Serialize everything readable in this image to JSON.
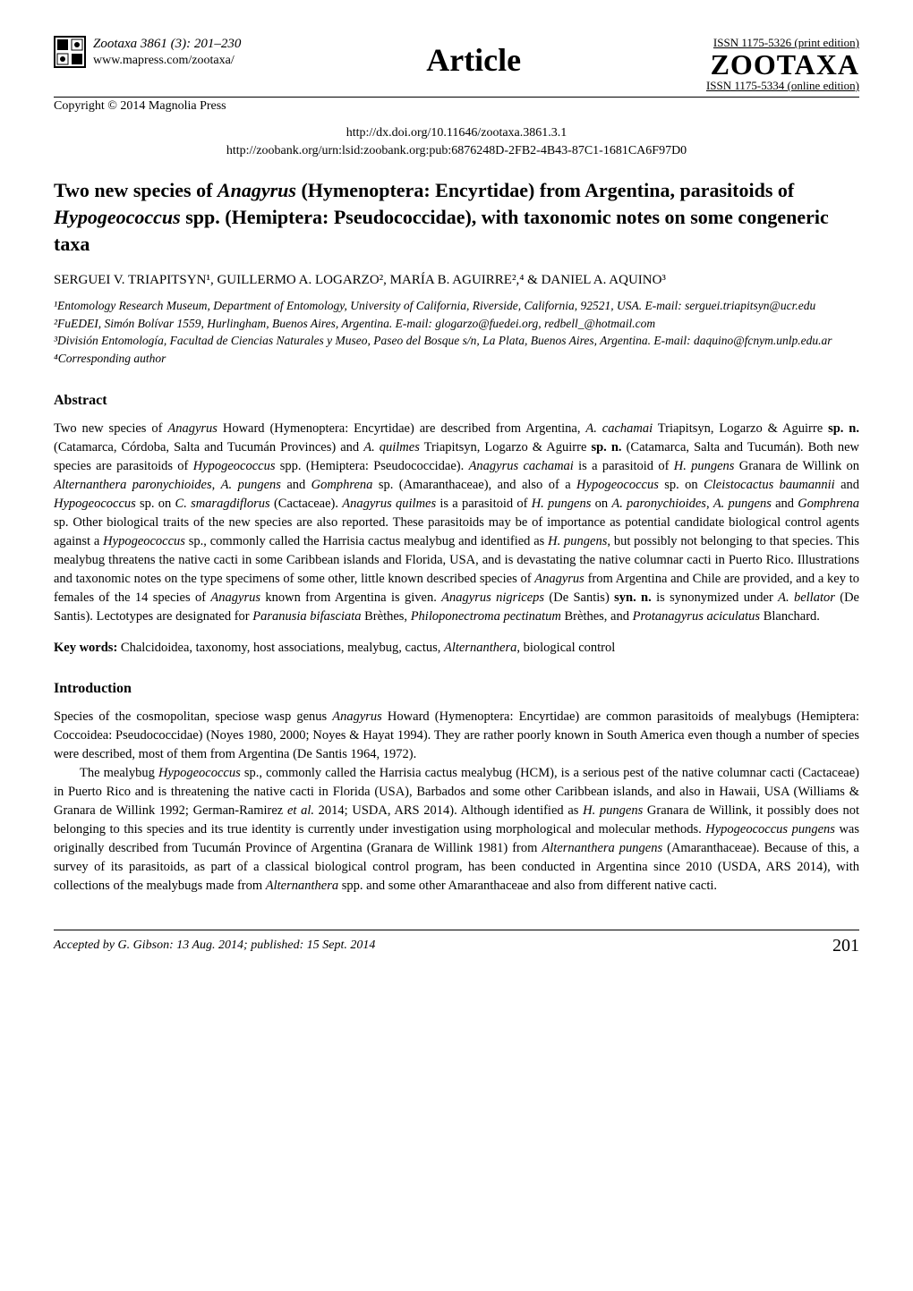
{
  "header": {
    "journal_ref": "Zootaxa 3861 (3): 201–230",
    "url": "www.mapress.com/zootaxa/",
    "copyright": "Copyright © 2014 Magnolia Press",
    "article_label": "Article",
    "issn_print": "ISSN 1175-5326  (print edition)",
    "zootaxa_logo": "ZOOTAXA",
    "issn_online": "ISSN 1175-5334 (online edition)",
    "doi_url": "http://dx.doi.org/10.11646/zootaxa.3861.3.1",
    "zoobank_url": "http://zoobank.org/urn:lsid:zoobank.org:pub:6876248D-2FB2-4B43-87C1-1681CA6F97D0"
  },
  "title_parts": {
    "p1": "Two new species of ",
    "p2": "Anagyrus",
    "p3": " (Hymenoptera: Encyrtidae) from Argentina, parasitoids of ",
    "p4": "Hypogeococcus",
    "p5": " spp. (Hemiptera: Pseudococcidae), with taxonomic notes on some congeneric taxa"
  },
  "authors_line": "SERGUEI V. TRIAPITSYN¹, GUILLERMO A. LOGARZO², MARÍA B. AGUIRRE²,⁴ & DANIEL A. AQUINO³",
  "affiliations": {
    "a1": "¹Entomology Research Museum, Department of Entomology, University of California, Riverside, California, 92521, USA. E-mail: serguei.triapitsyn@ucr.edu",
    "a2": "²FuEDEI, Simón Bolívar 1559, Hurlingham, Buenos Aires, Argentina. E-mail: glogarzo@fuedei.org, redbell_@hotmail.com",
    "a3": "³División Entomología, Facultad de Ciencias Naturales y Museo, Paseo del Bosque s/n, La Plata, Buenos Aires, Argentina. E-mail: daquino@fcnym.unlp.edu.ar",
    "a4": "⁴Corresponding author"
  },
  "abstract": {
    "heading": "Abstract",
    "body_html": "Two new species of <span class='italic'>Anagyrus</span> Howard (Hymenoptera: Encyrtidae) are described from Argentina, <span class='italic'>A. cachamai</span> Triapitsyn, Logarzo &amp; Aguirre <span class='bold'>sp. n.</span> (Catamarca, Córdoba, Salta and Tucumán Provinces) and <span class='italic'>A. quilmes</span> Triapitsyn, Logarzo &amp; Aguirre <span class='bold'>sp. n.</span> (Catamarca, Salta and Tucumán). Both new species are parasitoids of <span class='italic'>Hypogeococcus</span> spp. (Hemiptera: Pseudococcidae). <span class='italic'>Anagyrus cachamai</span> is a parasitoid of <span class='italic'>H. pungens</span> Granara de Willink on <span class='italic'>Alternanthera paronychioides</span>, <span class='italic'>A. pungens</span> and <span class='italic'>Gomphrena</span> sp. (Amaranthaceae), and also of a <span class='italic'>Hypogeococcus</span> sp. on <span class='italic'>Cleistocactus baumannii</span> and <span class='italic'>Hypogeococcus</span> sp. on <span class='italic'>C. smaragdiflorus</span> (Cactaceae). <span class='italic'>Anagyrus quilmes</span> is a parasitoid of <span class='italic'>H. pungens</span> on <span class='italic'>A. paronychioides</span>, <span class='italic'>A. pungens</span> and <span class='italic'>Gomphrena</span> sp. Other biological traits of the new species are also reported. These parasitoids may be of importance as potential candidate biological control agents against a <span class='italic'>Hypogeococcus</span> sp., commonly called the Harrisia cactus mealybug and identified as <span class='italic'>H. pungens</span>, but possibly not belonging to that species. This mealybug threatens the native cacti in some Caribbean islands and Florida, USA, and is devastating the native columnar cacti in Puerto Rico. Illustrations and taxonomic notes on the type specimens of some other, little known described species of <span class='italic'>Anagyrus</span> from Argentina and Chile are provided, and a key to females of the 14 species of <span class='italic'>Anagyrus</span> known from Argentina is given. <span class='italic'>Anagyrus nigriceps</span> (De Santis) <span class='bold'>syn. n.</span> is synonymized under <span class='italic'>A. bellator</span> (De Santis). Lectotypes are designated for <span class='italic'>Paranusia bifasciata</span> Brèthes, <span class='italic'>Philoponectroma pectinatum</span> Brèthes, and <span class='italic'>Protanagyrus aciculatus</span> Blanchard."
  },
  "keywords": {
    "label": "Key words:",
    "text": " Chalcidoidea, taxonomy, host associations, mealybug, cactus, ",
    "italic": "Alternanthera",
    "tail": ", biological control"
  },
  "introduction": {
    "heading": "Introduction",
    "p1_html": "Species of the cosmopolitan, speciose wasp genus <span class='italic'>Anagyrus</span> Howard (Hymenoptera: Encyrtidae) are common parasitoids of mealybugs (Hemiptera: Coccoidea: Pseudococcidae) (Noyes 1980, 2000; Noyes &amp; Hayat 1994). They are rather poorly known in South America even though a number of species were described, most of them from Argentina (De Santis 1964, 1972).",
    "p2_html": "The mealybug <span class='italic'>Hypogeococcus</span> sp., commonly called the Harrisia cactus mealybug (HCM), is a serious pest of the native columnar cacti (Cactaceae) in Puerto Rico and is threatening the native cacti in Florida (USA), Barbados and some other Caribbean islands, and also in Hawaii, USA (Williams &amp; Granara de Willink 1992; German-Ramirez <span class='italic'>et al.</span> 2014; USDA, ARS 2014). Although identified as <span class='italic'>H. pungens</span> Granara de Willink, it possibly does not belonging to this species and its true identity is currently under investigation using morphological and molecular methods. <span class='italic'>Hypogeococcus pungens</span> was originally described from Tucumán Province of Argentina (Granara de Willink 1981) from <span class='italic'>Alternanthera pungens</span> (Amaranthaceae). Because of this, a survey of its parasitoids, as part of a classical biological control program, has been conducted in Argentina since 2010 (USDA, ARS 2014), with collections of the mealybugs made from <span class='italic'>Alternanthera</span> spp. and some other Amaranthaceae and also from different native cacti."
  },
  "footer": {
    "accepted": "Accepted by G. Gibson: 13 Aug. 2014; published: 15 Sept. 2014",
    "page": "201"
  },
  "style": {
    "bg": "#ffffff",
    "text": "#000000",
    "rule": "#000000",
    "body_font_pt": 14.5,
    "title_font_pt": 22,
    "heading_font_pt": 16
  }
}
